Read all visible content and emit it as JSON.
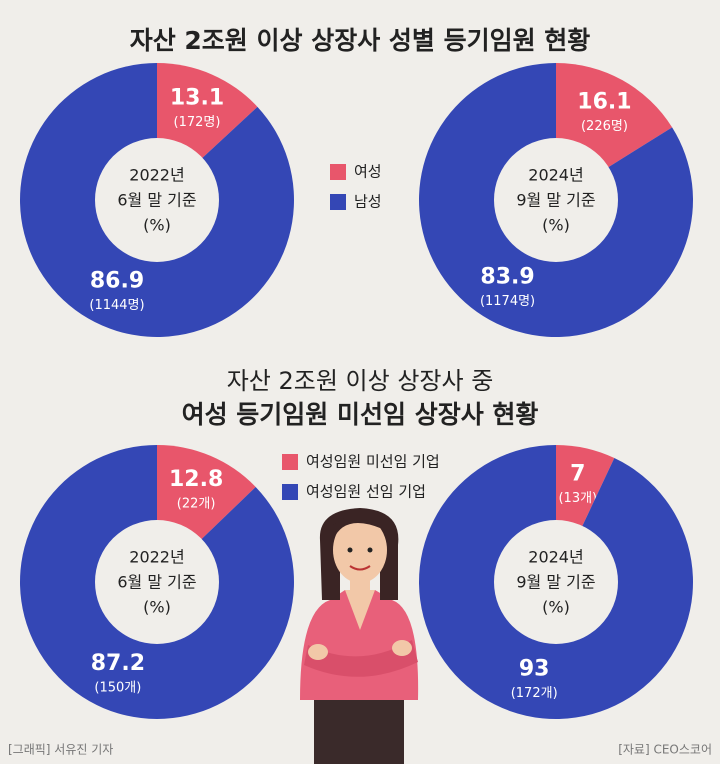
{
  "headings": {
    "top": "자산 2조원 이상 상장사 성별 등기임원 현황",
    "bottom": [
      "자산 2조원 이상 상장사 중",
      "여성 등기임원 미선임 상장사 현황"
    ]
  },
  "chart_data": [
    {
      "type": "donut",
      "center_label": [
        "2022년",
        "6월 말 기준",
        "(%)"
      ],
      "categories": [
        "여성",
        "남성"
      ],
      "values": [
        13.1,
        86.9
      ],
      "notes": [
        "(172명)",
        "(1144명)"
      ],
      "colors": [
        "#e8566b",
        "#3447b5"
      ]
    },
    {
      "type": "donut",
      "center_label": [
        "2024년",
        "9월 말 기준",
        "(%)"
      ],
      "categories": [
        "여성",
        "남성"
      ],
      "values": [
        16.1,
        83.9
      ],
      "notes": [
        "(226명)",
        "(1174명)"
      ],
      "colors": [
        "#e8566b",
        "#3447b5"
      ]
    },
    {
      "type": "donut",
      "center_label": [
        "2022년",
        "6월 말 기준",
        "(%)"
      ],
      "categories": [
        "여성임원 미선임 기업",
        "여성임원 선임 기업"
      ],
      "values": [
        12.8,
        87.2
      ],
      "notes": [
        "(22개)",
        "(150개)"
      ],
      "colors": [
        "#e8566b",
        "#3447b5"
      ]
    },
    {
      "type": "donut",
      "center_label": [
        "2024년",
        "9월 말 기준",
        "(%)"
      ],
      "categories": [
        "여성임원 미선임 기업",
        "여성임원 선임 기업"
      ],
      "values": [
        7,
        93
      ],
      "notes": [
        "(13개)",
        "(172개)"
      ],
      "colors": [
        "#e8566b",
        "#3447b5"
      ]
    }
  ],
  "footer": {
    "credit": "[그래픽] 서유진 기자",
    "source": "[자료] CEO스코어"
  }
}
